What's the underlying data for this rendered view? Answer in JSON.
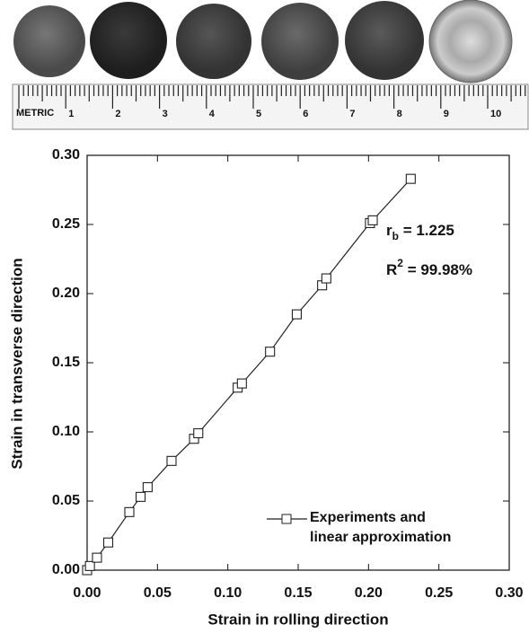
{
  "photo": {
    "ruler_label": "METRIC",
    "ruler_numbers": [
      "1",
      "2",
      "3",
      "4",
      "5",
      "6",
      "7",
      "8",
      "9",
      "10"
    ]
  },
  "chart_data": {
    "type": "line",
    "xlabel": "Strain in rolling direction",
    "ylabel": "Strain in transverse direction",
    "annotations": [
      {
        "base": "r",
        "subscript": "b",
        "text": " = 1.225"
      },
      {
        "base": "R",
        "superscript": "2",
        "text": " = 99.98%"
      }
    ],
    "series": [
      {
        "name": "Experiments and linear approximation",
        "color": "#222222",
        "marker": "square",
        "x": [
          0,
          0.002,
          0.007,
          0.015,
          0.03,
          0.038,
          0.043,
          0.06,
          0.076,
          0.079,
          0.107,
          0.11,
          0.13,
          0.149,
          0.167,
          0.17,
          0.201,
          0.203,
          0.23
        ],
        "values": [
          0,
          0.003,
          0.009,
          0.02,
          0.042,
          0.053,
          0.06,
          0.079,
          0.095,
          0.099,
          0.132,
          0.135,
          0.158,
          0.185,
          0.206,
          0.211,
          0.251,
          0.253,
          0.283
        ]
      }
    ],
    "xlim": [
      0,
      0.3
    ],
    "ylim": [
      0,
      0.3
    ],
    "xticks": [
      {
        "value": 0,
        "label": "0.00"
      },
      {
        "value": 0.05,
        "label": "0.05"
      },
      {
        "value": 0.1,
        "label": "0.10"
      },
      {
        "value": 0.15,
        "label": "0.15"
      },
      {
        "value": 0.2,
        "label": "0.20"
      },
      {
        "value": 0.25,
        "label": "0.25"
      },
      {
        "value": 0.3,
        "label": "0.30"
      }
    ],
    "yticks": [
      {
        "value": 0,
        "label": "0.00"
      },
      {
        "value": 0.05,
        "label": "0.05"
      },
      {
        "value": 0.1,
        "label": "0.10"
      },
      {
        "value": 0.15,
        "label": "0.15"
      },
      {
        "value": 0.2,
        "label": "0.20"
      },
      {
        "value": 0.25,
        "label": "0.25"
      },
      {
        "value": 0.3,
        "label": "0.30"
      }
    ],
    "grid": false,
    "legend": "lower right"
  }
}
